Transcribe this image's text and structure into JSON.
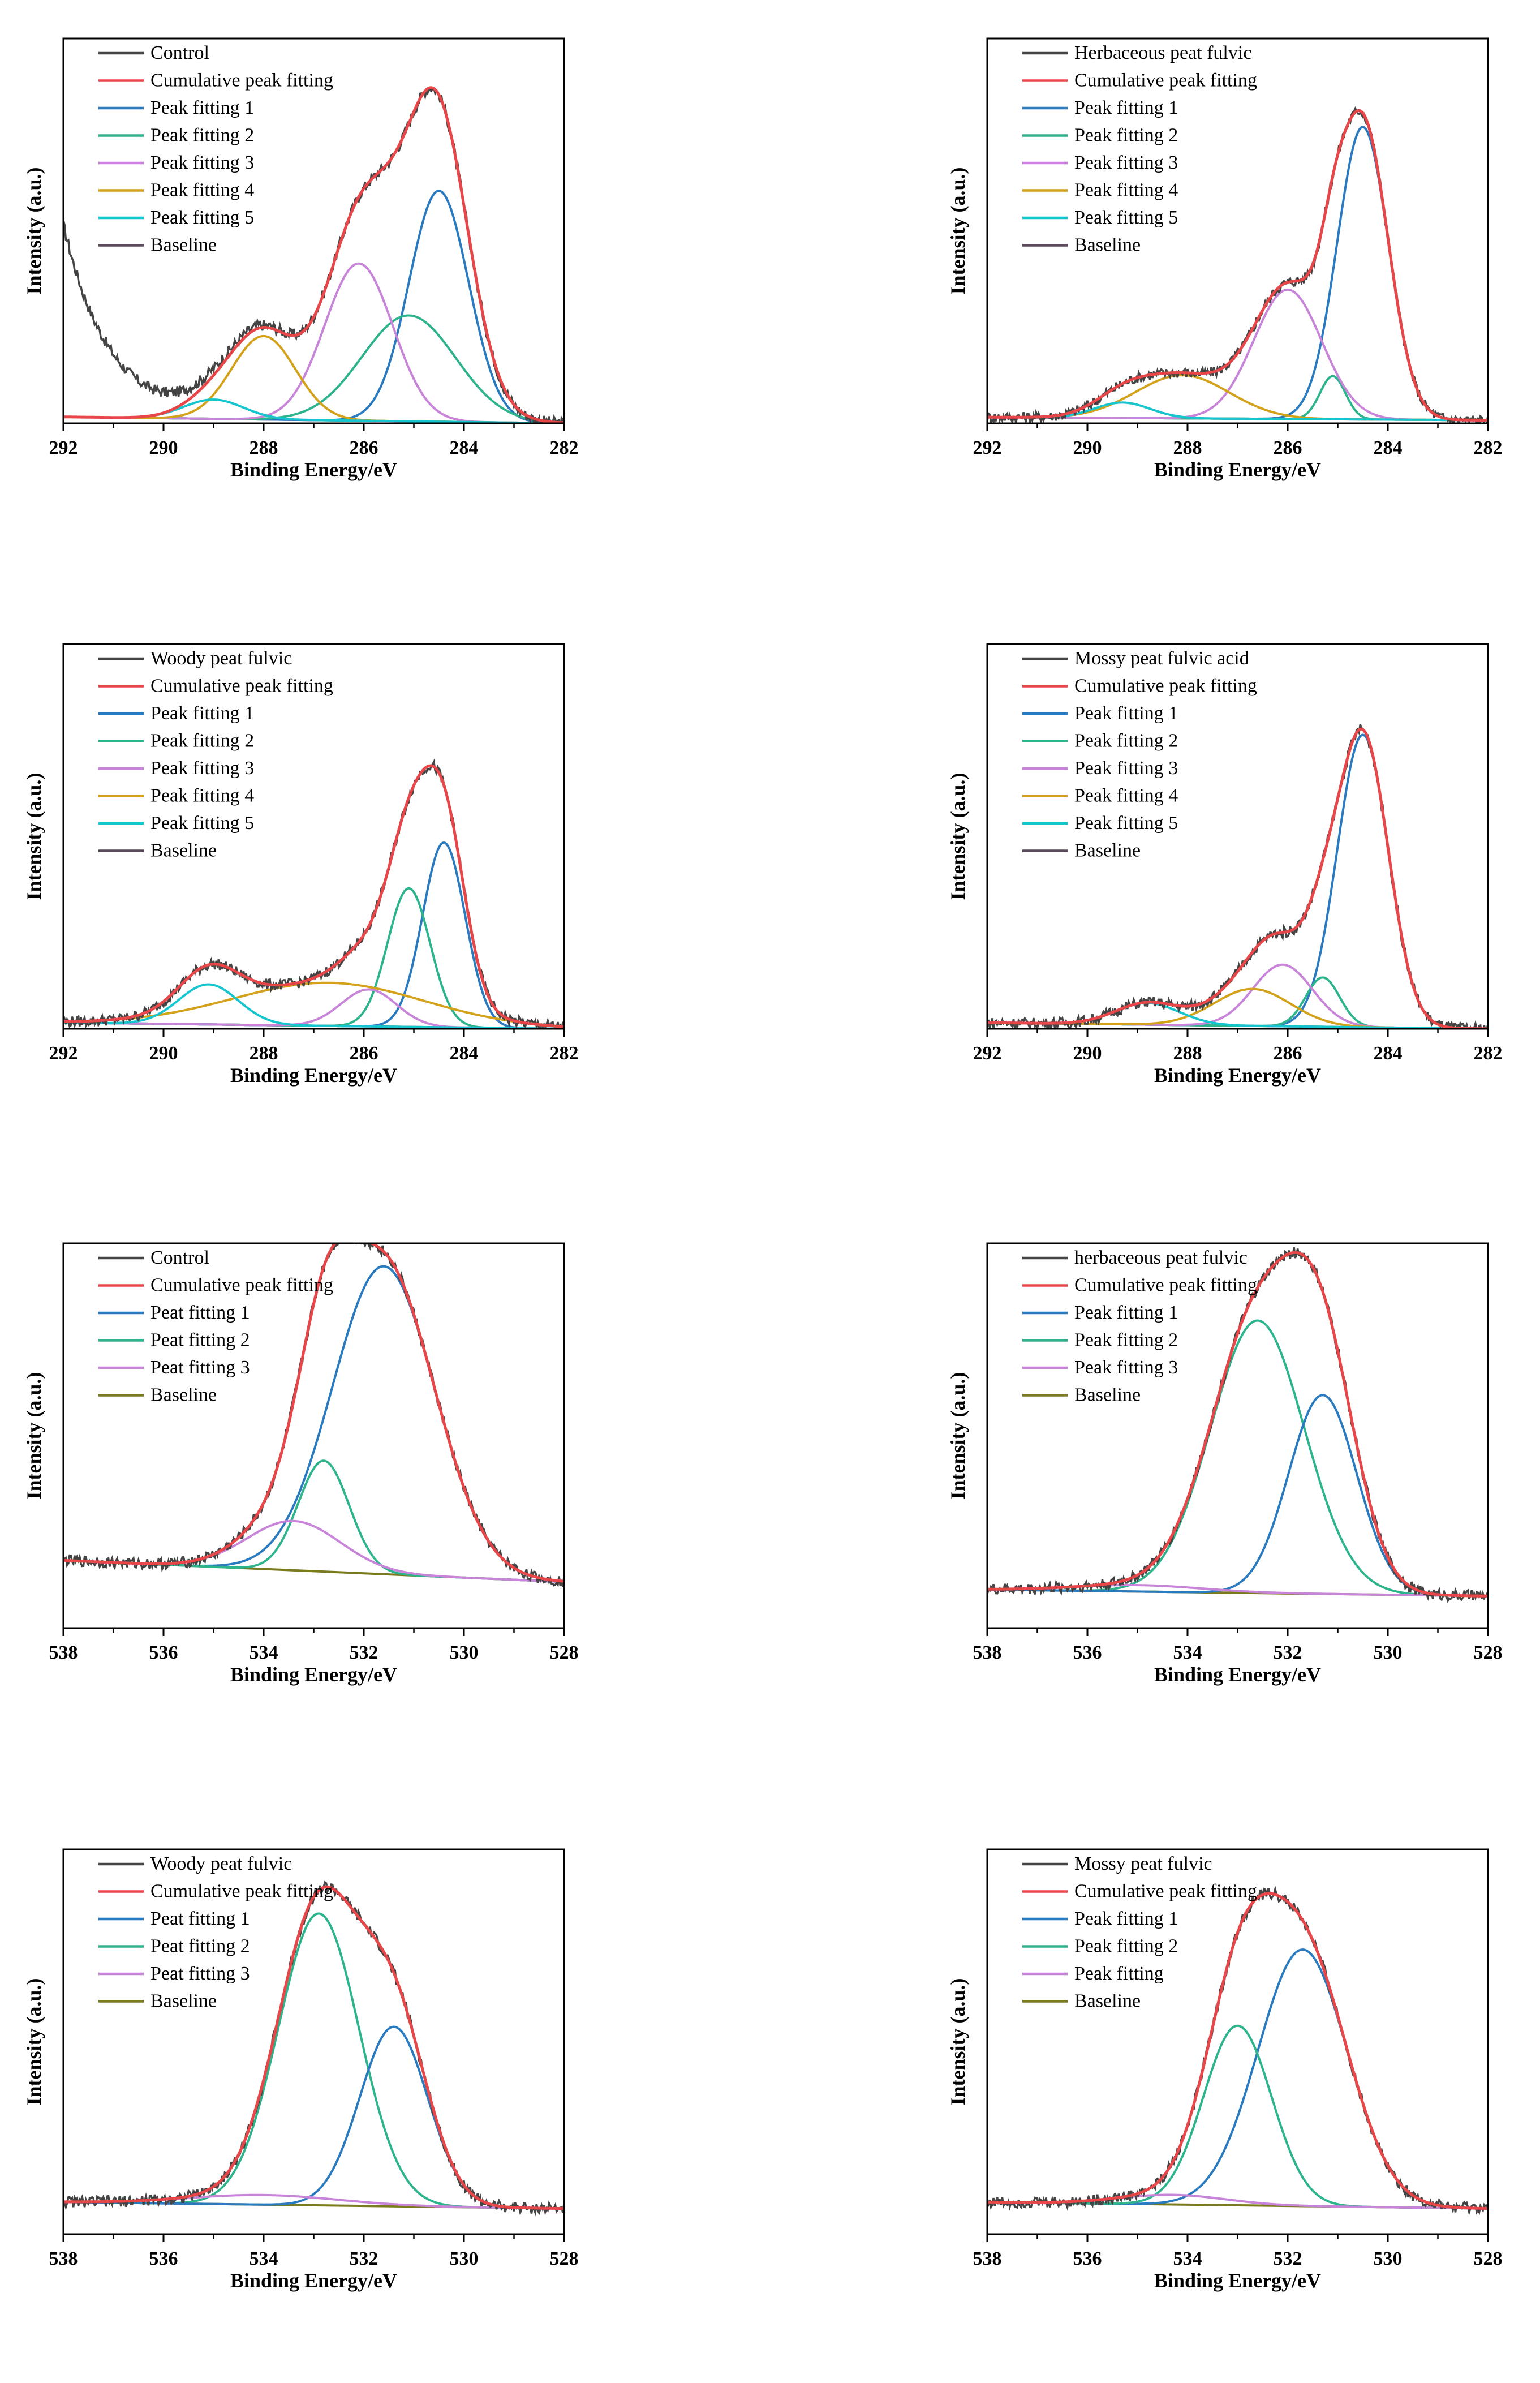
{
  "colors": {
    "raw": "#444444",
    "cumulative": "#e8474a",
    "p1": "#2a7abf",
    "p2": "#2eb48c",
    "p3": "#c784d8",
    "p4": "#d4a21a",
    "p5": "#16c6cf",
    "baseline_c": "#5a4a5a",
    "baseline_o": "#7a7a1e"
  },
  "chart_data": [
    {
      "type": "line",
      "panel": "C1s-control",
      "xlabel": "Binding Energy/eV",
      "ylabel": "Intensity (a.u.)",
      "xlim": [
        292,
        282
      ],
      "ylim": [
        0,
        1.2
      ],
      "xticks": [
        "292",
        "290",
        "288",
        "286",
        "284",
        "282"
      ],
      "legend": [
        "Control",
        "Cumulative peak fitting",
        "Peak fitting 1",
        "Peak fitting 2",
        "Peak fitting 3",
        "Peak fitting 4",
        "Peak fitting 5",
        "Baseline"
      ],
      "legend_colors": [
        "raw",
        "cumulative",
        "p1",
        "p2",
        "p3",
        "p4",
        "p5",
        "baseline_c"
      ],
      "baseline": {
        "start": 0.02,
        "end": 0.0
      },
      "peaks": [
        {
          "center": 284.5,
          "height": 0.72,
          "fwhm": 1.4,
          "color": "p1"
        },
        {
          "center": 285.1,
          "height": 0.33,
          "fwhm": 2.2,
          "color": "p2"
        },
        {
          "center": 286.1,
          "height": 0.49,
          "fwhm": 1.6,
          "color": "p3"
        },
        {
          "center": 288.0,
          "height": 0.26,
          "fwhm": 1.5,
          "color": "p4"
        },
        {
          "center": 289.0,
          "height": 0.06,
          "fwhm": 1.4,
          "color": "p5"
        }
      ],
      "raw_tail": {
        "amplitude": 0.6,
        "decay": 0.9,
        "from": 292
      }
    },
    {
      "type": "line",
      "panel": "C1s-herbaceous",
      "xlabel": "Binding Energy/eV",
      "ylabel": "Intensity (a.u.)",
      "xlim": [
        292,
        282
      ],
      "ylim": [
        0,
        1.25
      ],
      "xticks": [
        "292",
        "290",
        "288",
        "286",
        "284",
        "282"
      ],
      "legend": [
        "Herbaceous peat fulvic",
        "Cumulative peak fitting",
        "Peak fitting 1",
        "Peak fitting 2",
        "Peak fitting 3",
        "Peak fitting 4",
        "Peak fitting 5",
        "Baseline"
      ],
      "legend_colors": [
        "raw",
        "cumulative",
        "p1",
        "p2",
        "p3",
        "p4",
        "p5",
        "baseline_c"
      ],
      "baseline": {
        "start": 0.02,
        "end": 0.01
      },
      "peaks": [
        {
          "center": 284.5,
          "height": 0.95,
          "fwhm": 1.2,
          "color": "p1"
        },
        {
          "center": 285.1,
          "height": 0.14,
          "fwhm": 0.6,
          "color": "p2"
        },
        {
          "center": 286.0,
          "height": 0.42,
          "fwhm": 1.6,
          "color": "p3"
        },
        {
          "center": 288.1,
          "height": 0.14,
          "fwhm": 2.2,
          "color": "p4"
        },
        {
          "center": 289.3,
          "height": 0.05,
          "fwhm": 1.3,
          "color": "p5"
        }
      ]
    },
    {
      "type": "line",
      "panel": "C1s-woody",
      "xlabel": "Binding Energy/eV",
      "ylabel": "Intensity (a.u.)",
      "xlim": [
        292,
        282
      ],
      "ylim": [
        0,
        1.25
      ],
      "xticks": [
        "292",
        "290",
        "288",
        "286",
        "284",
        "282"
      ],
      "legend": [
        "Woody peat fulvic",
        "Cumulative peak fitting",
        "Peak fitting 1",
        "Peak fitting 2",
        "Peak fitting 3",
        "Peak fitting 4",
        "Peak fitting 5",
        "Baseline"
      ],
      "legend_colors": [
        "raw",
        "cumulative",
        "p1",
        "p2",
        "p3",
        "p4",
        "p5",
        "baseline_c"
      ],
      "baseline": {
        "start": 0.02,
        "end": 0.0
      },
      "peaks": [
        {
          "center": 284.4,
          "height": 0.6,
          "fwhm": 1.0,
          "color": "p1"
        },
        {
          "center": 285.1,
          "height": 0.45,
          "fwhm": 1.0,
          "color": "p2"
        },
        {
          "center": 285.9,
          "height": 0.12,
          "fwhm": 1.3,
          "color": "p3"
        },
        {
          "center": 286.7,
          "height": 0.14,
          "fwhm": 4.5,
          "color": "p4"
        },
        {
          "center": 289.1,
          "height": 0.13,
          "fwhm": 1.4,
          "color": "p5"
        }
      ]
    },
    {
      "type": "line",
      "panel": "C1s-mossy",
      "xlabel": "Binding Energy/eV",
      "ylabel": "Intensity (a.u.)",
      "xlim": [
        292,
        282
      ],
      "ylim": [
        0,
        1.25
      ],
      "xticks": [
        "292",
        "290",
        "288",
        "286",
        "284",
        "282"
      ],
      "legend": [
        "Mossy peat fulvic acid",
        "Cumulative peak fitting",
        "Peak fitting 1",
        "Peak fitting 2",
        "Peak fitting 3",
        "Peak fitting 4",
        "Peak fitting 5",
        "Baseline"
      ],
      "legend_colors": [
        "raw",
        "cumulative",
        "p1",
        "p2",
        "p3",
        "p4",
        "p5",
        "baseline_c"
      ],
      "baseline": {
        "start": 0.02,
        "end": 0.0
      },
      "peaks": [
        {
          "center": 284.5,
          "height": 0.95,
          "fwhm": 1.2,
          "color": "p1"
        },
        {
          "center": 285.3,
          "height": 0.16,
          "fwhm": 0.8,
          "color": "p2"
        },
        {
          "center": 286.1,
          "height": 0.2,
          "fwhm": 1.4,
          "color": "p3"
        },
        {
          "center": 286.7,
          "height": 0.12,
          "fwhm": 1.8,
          "color": "p4"
        },
        {
          "center": 288.8,
          "height": 0.07,
          "fwhm": 1.5,
          "color": "p5"
        }
      ]
    },
    {
      "type": "line",
      "panel": "O1s-control",
      "xlabel": "Binding Energy/eV",
      "ylabel": "Intensity (a.u.)",
      "xlim": [
        538,
        528
      ],
      "ylim": [
        0,
        1.25
      ],
      "xticks": [
        "538",
        "536",
        "534",
        "532",
        "530",
        "528"
      ],
      "legend": [
        "Control",
        "Cumulative peak fitting",
        "Peat fitting 1",
        "Peat fitting 2",
        "Peat fitting 3",
        "Baseline"
      ],
      "legend_colors": [
        "raw",
        "cumulative",
        "p1",
        "p2",
        "p3",
        "baseline_o"
      ],
      "baseline": {
        "start": 0.22,
        "end": 0.15
      },
      "peaks": [
        {
          "center": 531.6,
          "height": 1.0,
          "fwhm": 2.4,
          "color": "p1"
        },
        {
          "center": 532.8,
          "height": 0.36,
          "fwhm": 1.2,
          "color": "p2"
        },
        {
          "center": 533.4,
          "height": 0.16,
          "fwhm": 2.2,
          "color": "p3"
        }
      ]
    },
    {
      "type": "line",
      "panel": "O1s-herbaceous",
      "xlabel": "Binding Energy/eV",
      "ylabel": "Intensity (a.u.)",
      "xlim": [
        538,
        528
      ],
      "ylim": [
        0,
        1.2
      ],
      "xticks": [
        "538",
        "536",
        "534",
        "532",
        "530",
        "528"
      ],
      "legend": [
        "herbaceous peat fulvic",
        "Cumulative peak fitting",
        "Peak fitting 1",
        "Peak fitting 2",
        "Peak fitting 3",
        "Baseline"
      ],
      "legend_colors": [
        "raw",
        "cumulative",
        "p1",
        "p2",
        "p3",
        "baseline_o"
      ],
      "baseline": {
        "start": 0.12,
        "end": 0.1
      },
      "peaks": [
        {
          "center": 532.6,
          "height": 0.85,
          "fwhm": 2.2,
          "color": "p2"
        },
        {
          "center": 531.3,
          "height": 0.62,
          "fwhm": 1.6,
          "color": "p1"
        },
        {
          "center": 535.0,
          "height": 0.02,
          "fwhm": 3.0,
          "color": "p3"
        }
      ]
    },
    {
      "type": "line",
      "panel": "O1s-woody",
      "xlabel": "Binding Energy/eV",
      "ylabel": "Intensity (a.u.)",
      "xlim": [
        538,
        528
      ],
      "ylim": [
        0,
        1.2
      ],
      "xticks": [
        "538",
        "536",
        "534",
        "532",
        "530",
        "528"
      ],
      "legend": [
        "Woody peat fulvic",
        "Cumulative peak fitting",
        "Peat fitting 1",
        "Peat fitting 2",
        "Peat fitting 3",
        "Baseline"
      ],
      "legend_colors": [
        "raw",
        "cumulative",
        "p1",
        "p2",
        "p3",
        "baseline_o"
      ],
      "baseline": {
        "start": 0.1,
        "end": 0.08
      },
      "peaks": [
        {
          "center": 532.9,
          "height": 0.91,
          "fwhm": 1.9,
          "color": "p2"
        },
        {
          "center": 531.4,
          "height": 0.56,
          "fwhm": 1.6,
          "color": "p1"
        },
        {
          "center": 534.0,
          "height": 0.03,
          "fwhm": 3.5,
          "color": "p3"
        }
      ]
    },
    {
      "type": "line",
      "panel": "O1s-mossy",
      "xlabel": "Binding Energy/eV",
      "ylabel": "Intensity (a.u.)",
      "xlim": [
        538,
        528
      ],
      "ylim": [
        0,
        1.2
      ],
      "xticks": [
        "538",
        "536",
        "534",
        "532",
        "530",
        "528"
      ],
      "legend": [
        "Mossy peat fulvic",
        "Cumulative peak fitting",
        "Peak fitting 1",
        "Peak fitting 2",
        "Peak fitting",
        "Baseline"
      ],
      "legend_colors": [
        "raw",
        "cumulative",
        "p1",
        "p2",
        "p3",
        "baseline_o"
      ],
      "baseline": {
        "start": 0.1,
        "end": 0.08
      },
      "peaks": [
        {
          "center": 531.7,
          "height": 0.8,
          "fwhm": 2.1,
          "color": "p1"
        },
        {
          "center": 533.0,
          "height": 0.56,
          "fwhm": 1.6,
          "color": "p2"
        },
        {
          "center": 534.3,
          "height": 0.03,
          "fwhm": 2.5,
          "color": "p3"
        }
      ]
    }
  ]
}
